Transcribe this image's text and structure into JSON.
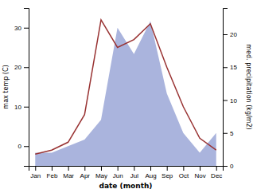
{
  "chart_data": {
    "type": "line",
    "categories": [
      "Jan",
      "Feb",
      "Mar",
      "Apr",
      "May",
      "Jun",
      "Jul",
      "Aug",
      "Sep",
      "Oct",
      "Nov",
      "Dec"
    ],
    "xlabel": "date (month)",
    "ylabel": "max temp (C)",
    "y2label": "med. precipitation (kg/m2)",
    "ylim": [
      -5,
      35
    ],
    "yticks": [
      0,
      10,
      20,
      30
    ],
    "y2lim": [
      0,
      24
    ],
    "y2ticks": [
      0,
      5,
      10,
      15,
      20
    ],
    "grid": false,
    "series": [
      {
        "type": "area",
        "axis": "y2",
        "color": "#aab4dd",
        "values": [
          2,
          2,
          3,
          4,
          7,
          21,
          17,
          22,
          11,
          5,
          2,
          5
        ]
      },
      {
        "type": "line",
        "color": "#993333",
        "values": [
          -2,
          -1,
          1,
          8,
          32,
          25,
          27,
          31,
          20,
          10,
          2,
          -1
        ]
      }
    ]
  }
}
